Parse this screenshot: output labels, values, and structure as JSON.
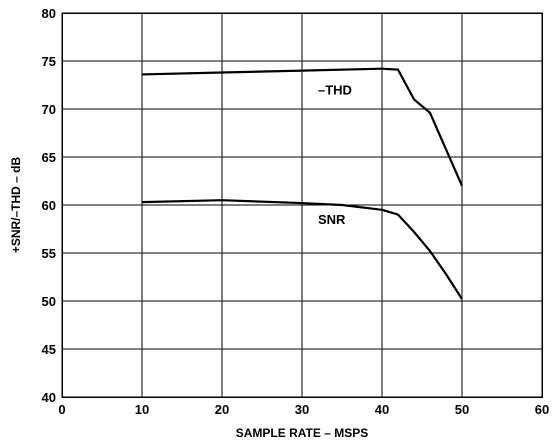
{
  "chart_data": {
    "type": "line",
    "xlabel": "SAMPLE RATE – MSPS",
    "ylabel": "+SNR/–THD – dB",
    "xlim": [
      0,
      60
    ],
    "ylim": [
      40,
      80
    ],
    "xticks": [
      0,
      10,
      20,
      30,
      40,
      50,
      60
    ],
    "yticks": [
      40,
      45,
      50,
      55,
      60,
      65,
      70,
      75,
      80
    ],
    "grid": true,
    "series": [
      {
        "name": "–THD",
        "x": [
          10,
          20,
          30,
          40,
          42,
          44,
          46,
          48,
          50
        ],
        "y": [
          73.6,
          73.8,
          74.0,
          74.2,
          74.1,
          71.0,
          69.6,
          65.8,
          62.0
        ]
      },
      {
        "name": "SNR",
        "x": [
          10,
          20,
          30,
          35,
          40,
          42,
          44,
          46,
          48,
          50
        ],
        "y": [
          60.3,
          60.5,
          60.2,
          60.0,
          59.5,
          59.0,
          57.2,
          55.2,
          52.8,
          50.2
        ]
      }
    ]
  }
}
